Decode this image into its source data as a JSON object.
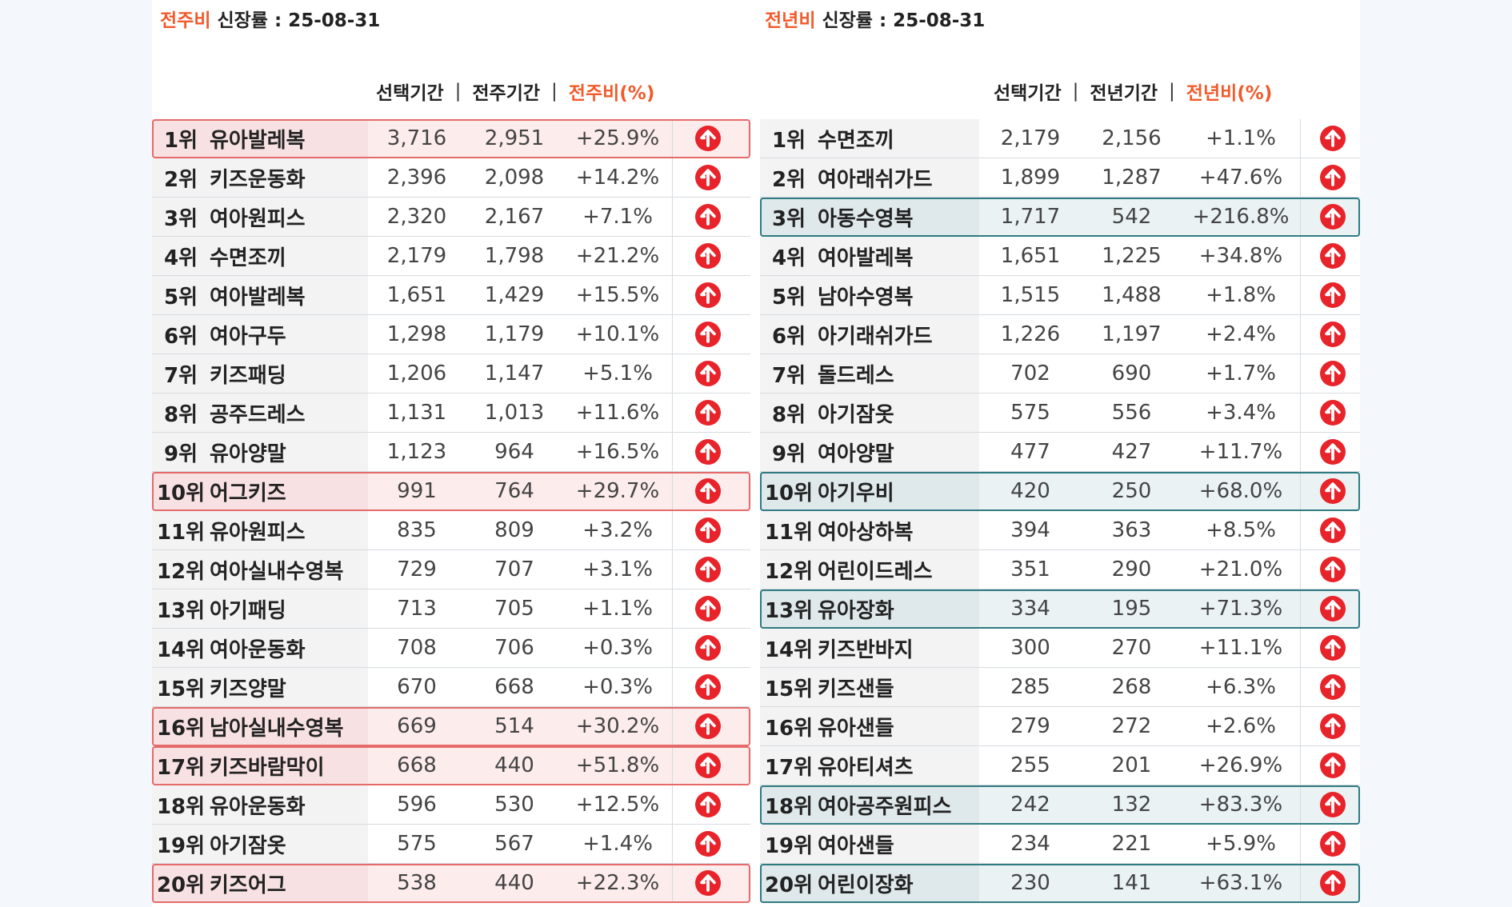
{
  "left": {
    "caption_accent": "전주비",
    "caption_rest": " 신장률 : 25-08-31",
    "headers": {
      "cur": "선택기간",
      "sep": "|",
      "prev": "전주기간",
      "pct": "전주비(%)"
    },
    "rows": [
      {
        "rank": "1위",
        "name": "유아발레복",
        "cur": "3,716",
        "prev": "2,951",
        "pct": "+25.9%",
        "hl": "red"
      },
      {
        "rank": "2위",
        "name": "키즈운동화",
        "cur": "2,396",
        "prev": "2,098",
        "pct": "+14.2%",
        "hl": ""
      },
      {
        "rank": "3위",
        "name": "여아원피스",
        "cur": "2,320",
        "prev": "2,167",
        "pct": "+7.1%",
        "hl": ""
      },
      {
        "rank": "4위",
        "name": "수면조끼",
        "cur": "2,179",
        "prev": "1,798",
        "pct": "+21.2%",
        "hl": ""
      },
      {
        "rank": "5위",
        "name": "여아발레복",
        "cur": "1,651",
        "prev": "1,429",
        "pct": "+15.5%",
        "hl": ""
      },
      {
        "rank": "6위",
        "name": "여아구두",
        "cur": "1,298",
        "prev": "1,179",
        "pct": "+10.1%",
        "hl": ""
      },
      {
        "rank": "7위",
        "name": "키즈패딩",
        "cur": "1,206",
        "prev": "1,147",
        "pct": "+5.1%",
        "hl": ""
      },
      {
        "rank": "8위",
        "name": "공주드레스",
        "cur": "1,131",
        "prev": "1,013",
        "pct": "+11.6%",
        "hl": ""
      },
      {
        "rank": "9위",
        "name": "유아양말",
        "cur": "1,123",
        "prev": "964",
        "pct": "+16.5%",
        "hl": ""
      },
      {
        "rank": "10위",
        "name": "어그키즈",
        "cur": "991",
        "prev": "764",
        "pct": "+29.7%",
        "hl": "red"
      },
      {
        "rank": "11위",
        "name": "유아원피스",
        "cur": "835",
        "prev": "809",
        "pct": "+3.2%",
        "hl": ""
      },
      {
        "rank": "12위",
        "name": "여아실내수영복",
        "cur": "729",
        "prev": "707",
        "pct": "+3.1%",
        "hl": ""
      },
      {
        "rank": "13위",
        "name": "아기패딩",
        "cur": "713",
        "prev": "705",
        "pct": "+1.1%",
        "hl": ""
      },
      {
        "rank": "14위",
        "name": "여아운동화",
        "cur": "708",
        "prev": "706",
        "pct": "+0.3%",
        "hl": ""
      },
      {
        "rank": "15위",
        "name": "키즈양말",
        "cur": "670",
        "prev": "668",
        "pct": "+0.3%",
        "hl": ""
      },
      {
        "rank": "16위",
        "name": "남아실내수영복",
        "cur": "669",
        "prev": "514",
        "pct": "+30.2%",
        "hl": "red"
      },
      {
        "rank": "17위",
        "name": "키즈바람막이",
        "cur": "668",
        "prev": "440",
        "pct": "+51.8%",
        "hl": "red"
      },
      {
        "rank": "18위",
        "name": "유아운동화",
        "cur": "596",
        "prev": "530",
        "pct": "+12.5%",
        "hl": ""
      },
      {
        "rank": "19위",
        "name": "아기잠옷",
        "cur": "575",
        "prev": "567",
        "pct": "+1.4%",
        "hl": ""
      },
      {
        "rank": "20위",
        "name": "키즈어그",
        "cur": "538",
        "prev": "440",
        "pct": "+22.3%",
        "hl": "red"
      }
    ]
  },
  "right": {
    "caption_accent": "전년비",
    "caption_rest": " 신장률 : 25-08-31",
    "headers": {
      "cur": "선택기간",
      "sep": "|",
      "prev": "전년기간",
      "pct": "전년비(%)"
    },
    "rows": [
      {
        "rank": "1위",
        "name": "수면조끼",
        "cur": "2,179",
        "prev": "2,156",
        "pct": "+1.1%",
        "hl": ""
      },
      {
        "rank": "2위",
        "name": "여아래쉬가드",
        "cur": "1,899",
        "prev": "1,287",
        "pct": "+47.6%",
        "hl": ""
      },
      {
        "rank": "3위",
        "name": "아동수영복",
        "cur": "1,717",
        "prev": "542",
        "pct": "+216.8%",
        "hl": "teal"
      },
      {
        "rank": "4위",
        "name": "여아발레복",
        "cur": "1,651",
        "prev": "1,225",
        "pct": "+34.8%",
        "hl": ""
      },
      {
        "rank": "5위",
        "name": "남아수영복",
        "cur": "1,515",
        "prev": "1,488",
        "pct": "+1.8%",
        "hl": ""
      },
      {
        "rank": "6위",
        "name": "아기래쉬가드",
        "cur": "1,226",
        "prev": "1,197",
        "pct": "+2.4%",
        "hl": ""
      },
      {
        "rank": "7위",
        "name": "돌드레스",
        "cur": "702",
        "prev": "690",
        "pct": "+1.7%",
        "hl": ""
      },
      {
        "rank": "8위",
        "name": "아기잠옷",
        "cur": "575",
        "prev": "556",
        "pct": "+3.4%",
        "hl": ""
      },
      {
        "rank": "9위",
        "name": "여아양말",
        "cur": "477",
        "prev": "427",
        "pct": "+11.7%",
        "hl": ""
      },
      {
        "rank": "10위",
        "name": "아기우비",
        "cur": "420",
        "prev": "250",
        "pct": "+68.0%",
        "hl": "teal"
      },
      {
        "rank": "11위",
        "name": "여아상하복",
        "cur": "394",
        "prev": "363",
        "pct": "+8.5%",
        "hl": ""
      },
      {
        "rank": "12위",
        "name": "어린이드레스",
        "cur": "351",
        "prev": "290",
        "pct": "+21.0%",
        "hl": ""
      },
      {
        "rank": "13위",
        "name": "유아장화",
        "cur": "334",
        "prev": "195",
        "pct": "+71.3%",
        "hl": "teal"
      },
      {
        "rank": "14위",
        "name": "키즈반바지",
        "cur": "300",
        "prev": "270",
        "pct": "+11.1%",
        "hl": ""
      },
      {
        "rank": "15위",
        "name": "키즈샌들",
        "cur": "285",
        "prev": "268",
        "pct": "+6.3%",
        "hl": ""
      },
      {
        "rank": "16위",
        "name": "유아샌들",
        "cur": "279",
        "prev": "272",
        "pct": "+2.6%",
        "hl": ""
      },
      {
        "rank": "17위",
        "name": "유아티셔츠",
        "cur": "255",
        "prev": "201",
        "pct": "+26.9%",
        "hl": ""
      },
      {
        "rank": "18위",
        "name": "여아공주원피스",
        "cur": "242",
        "prev": "132",
        "pct": "+83.3%",
        "hl": "teal"
      },
      {
        "rank": "19위",
        "name": "여아샌들",
        "cur": "234",
        "prev": "221",
        "pct": "+5.9%",
        "hl": ""
      },
      {
        "rank": "20위",
        "name": "어린이장화",
        "cur": "230",
        "prev": "141",
        "pct": "+63.1%",
        "hl": "teal"
      }
    ]
  },
  "icons": {
    "trend": "arrow-up-circle-icon",
    "trend_color": "#e8232a"
  },
  "colors": {
    "accent": "#f25a2a",
    "highlight_red": "#e56b6b",
    "highlight_teal": "#2f7b82"
  }
}
